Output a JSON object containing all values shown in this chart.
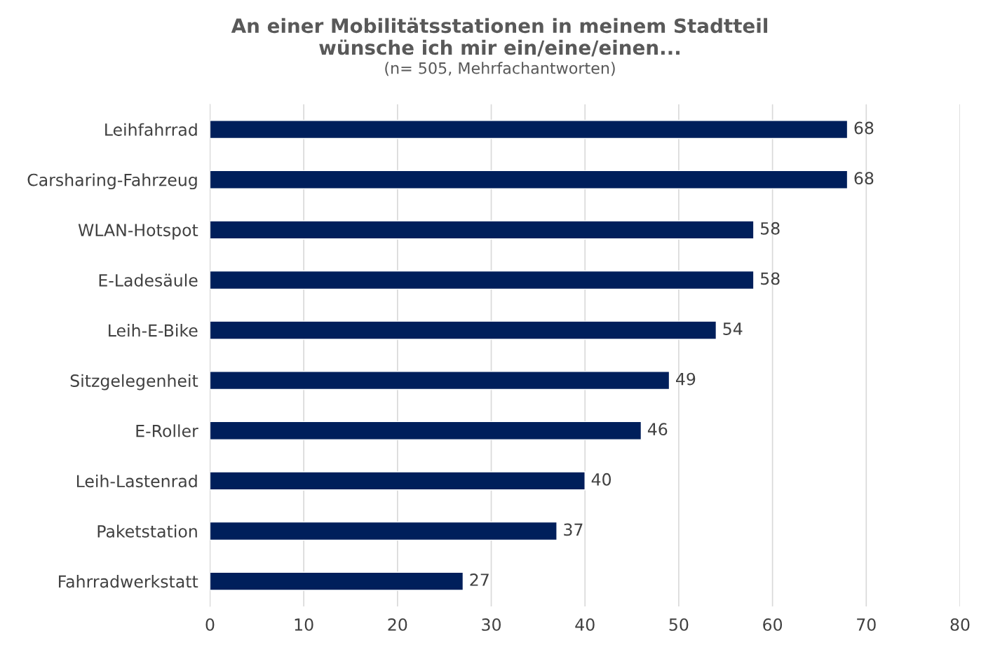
{
  "chart_data": {
    "type": "bar",
    "orientation": "horizontal",
    "title": "An einer Mobilitätsstationen in meinem Stadtteil\nwünsche ich mir ein/eine/einen...",
    "subtitle": "(n= 505, Mehrfachantworten)",
    "categories": [
      "Leihfahrrad",
      "Carsharing-Fahrzeug",
      "WLAN-Hotspot",
      "E-Ladesäule",
      "Leih-E-Bike",
      "Sitzgelegenheit",
      "E-Roller",
      "Leih-Lastenrad",
      "Paketstation",
      "Fahrradwerkstatt"
    ],
    "values": [
      68,
      68,
      58,
      58,
      54,
      49,
      46,
      40,
      37,
      27
    ],
    "color": "#001f5b",
    "xlim": [
      0,
      80
    ],
    "xticks": [
      0,
      10,
      20,
      30,
      40,
      50,
      60,
      70,
      80
    ],
    "grid": "x",
    "data_labels": true
  }
}
